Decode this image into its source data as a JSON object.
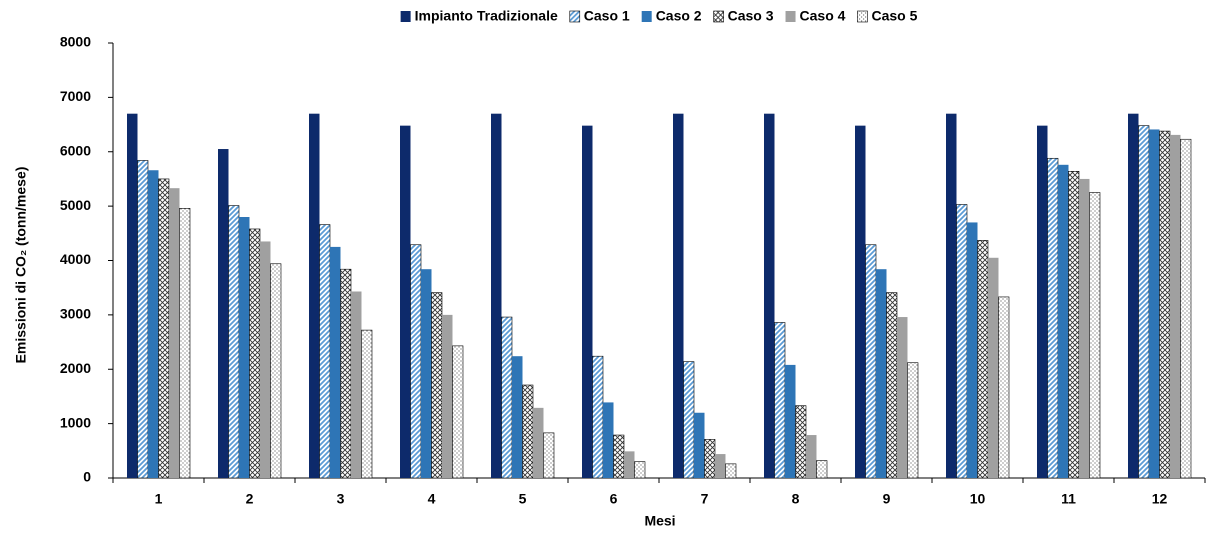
{
  "chart_data": {
    "type": "bar",
    "y_label": "Emissioni di CO₂ (tonn/mese)",
    "x_label": "Mesi",
    "categories": [
      "1",
      "2",
      "3",
      "4",
      "5",
      "6",
      "7",
      "8",
      "9",
      "10",
      "11",
      "12"
    ],
    "series": [
      {
        "name": "Impianto Tradizionale",
        "color": "#0d2a6b",
        "pattern": "solid",
        "values": [
          6700,
          6050,
          6700,
          6480,
          6700,
          6480,
          6700,
          6700,
          6480,
          6700,
          6480,
          6700
        ]
      },
      {
        "name": "Caso 1",
        "color": "#5b9bd5",
        "pattern": "diagonal",
        "values": [
          5840,
          5010,
          4660,
          4290,
          2960,
          2240,
          2140,
          2860,
          4290,
          5030,
          5880,
          6480
        ]
      },
      {
        "name": "Caso 2",
        "color": "#2e75b6",
        "pattern": "solid",
        "values": [
          5660,
          4800,
          4250,
          3840,
          2240,
          1390,
          1200,
          2080,
          3840,
          4700,
          5760,
          6410
        ]
      },
      {
        "name": "Caso 3",
        "color": "#333333",
        "pattern": "crosshatch",
        "values": [
          5500,
          4580,
          3840,
          3410,
          1710,
          790,
          710,
          1330,
          3410,
          4370,
          5640,
          6380
        ]
      },
      {
        "name": "Caso 4",
        "color": "#a0a0a0",
        "pattern": "solid",
        "values": [
          5330,
          4350,
          3430,
          3000,
          1290,
          490,
          440,
          790,
          2960,
          4050,
          5500,
          6310
        ]
      },
      {
        "name": "Caso 5",
        "color": "#555555",
        "pattern": "dots",
        "values": [
          4960,
          3940,
          2720,
          2430,
          830,
          300,
          260,
          320,
          2120,
          3330,
          5250,
          6230
        ]
      }
    ],
    "ylim": [
      0,
      8000
    ],
    "yticks": [
      0,
      1000,
      2000,
      3000,
      4000,
      5000,
      6000,
      7000,
      8000
    ],
    "legend": "top"
  }
}
